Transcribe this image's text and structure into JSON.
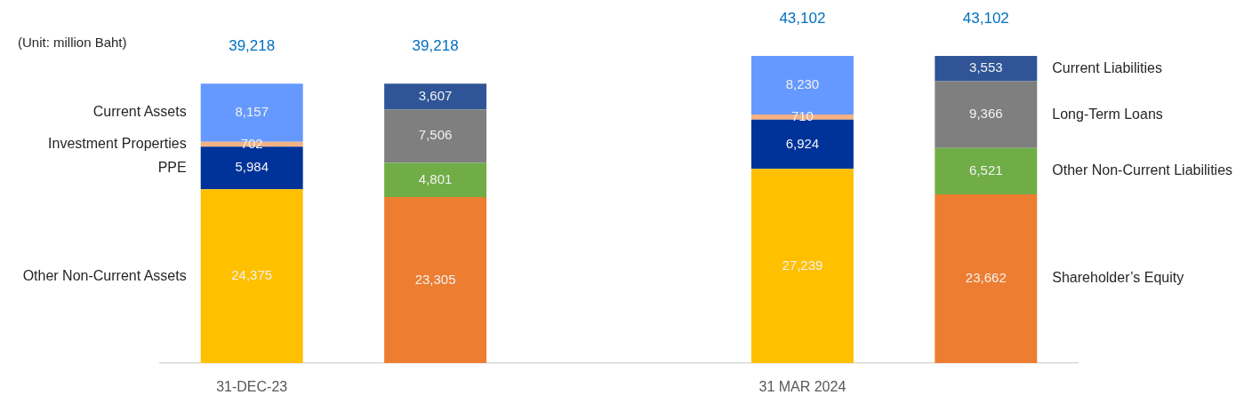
{
  "chart_data": {
    "type": "bar",
    "stacked": true,
    "tick_labels": "x",
    "categories": [
      "31-DEC-23",
      null,
      null,
      "31 MAR 2024",
      null
    ],
    "series": [
      {
        "name": "Other Non-Current Assets",
        "color": "#ffc000",
        "values": [
          24375,
          null,
          null,
          27239,
          null
        ],
        "value_labels": [
          "24,375",
          null,
          null,
          "27,239",
          null
        ]
      },
      {
        "name": "PPE",
        "color": "#003399",
        "values": [
          5984,
          null,
          null,
          6924,
          null
        ],
        "value_labels": [
          "5,984",
          null,
          null,
          "6,924",
          null
        ]
      },
      {
        "name": "Investment Properties",
        "color": "#f4b183",
        "values": [
          702,
          null,
          null,
          710,
          null
        ],
        "value_labels": [
          "702",
          null,
          null,
          "710",
          null
        ]
      },
      {
        "name": "Current Assets",
        "color": "#6699ff",
        "values": [
          8157,
          null,
          null,
          8230,
          null
        ],
        "value_labels": [
          "8,157",
          null,
          null,
          "8,230",
          null
        ]
      },
      {
        "name": "Shareholder’s Equity",
        "color": "#ed7d31",
        "values": [
          null,
          23305,
          null,
          null,
          23662
        ],
        "value_labels": [
          null,
          "23,305",
          null,
          null,
          "23,662"
        ]
      },
      {
        "name": "Other Non-Current Liabilities",
        "color": "#70ad47",
        "values": [
          null,
          4801,
          null,
          null,
          6521
        ],
        "value_labels": [
          null,
          "4,801",
          null,
          null,
          "6,521"
        ]
      },
      {
        "name": "Long-Term Loans",
        "color": "#7f7f7f",
        "values": [
          null,
          7506,
          null,
          null,
          9366
        ],
        "value_labels": [
          null,
          "7,506",
          null,
          null,
          "9,366"
        ]
      },
      {
        "name": "Current Liabilities",
        "color": "#2f5597",
        "values": [
          null,
          3607,
          null,
          null,
          3553
        ],
        "value_labels": [
          null,
          "3,607",
          null,
          null,
          "3,553"
        ]
      }
    ],
    "totals": [
      "39,218",
      "39,218",
      null,
      "43,102",
      "43,102"
    ],
    "annotations": [
      "(Unit: million Baht)"
    ]
  }
}
